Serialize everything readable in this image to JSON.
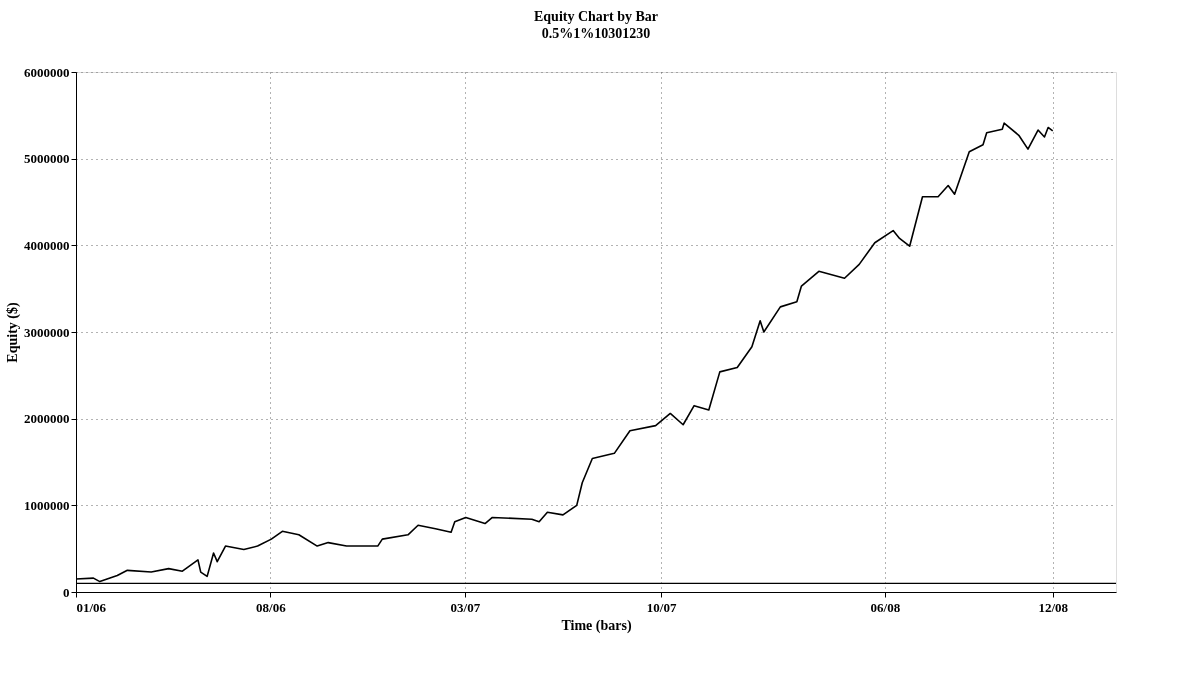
{
  "chart_data": {
    "type": "line",
    "title": "Equity Chart by Bar",
    "subtitle": "0.5%1%10301230",
    "xlabel": "Time (bars)",
    "ylabel": "Equity ($)",
    "xlim": [
      "2006-01-01",
      "2009-02-08"
    ],
    "xticks": [
      {
        "value": "2006-01",
        "label": "01/06"
      },
      {
        "value": "2006-08",
        "label": "08/06"
      },
      {
        "value": "2007-03",
        "label": "03/07"
      },
      {
        "value": "2007-10",
        "label": "10/07"
      },
      {
        "value": "2008-06",
        "label": "06/08"
      },
      {
        "value": "2008-12",
        "label": "12/08"
      }
    ],
    "ylim": [
      0,
      6000000
    ],
    "yticks": [
      0,
      1000000,
      2000000,
      3000000,
      4000000,
      5000000,
      6000000
    ],
    "grid": true,
    "line_style": "solid",
    "marker": "none",
    "ref_lines": [
      {
        "axis": "y",
        "value": 100000,
        "color": "#000000"
      }
    ],
    "x": [
      "2006-01-01",
      "2006-01-20",
      "2006-01-27",
      "2006-02-15",
      "2006-02-26",
      "2006-03-24",
      "2006-04-12",
      "2006-04-27",
      "2006-05-14",
      "2006-05-17",
      "2006-05-24",
      "2006-05-31",
      "2006-06-04",
      "2006-06-13",
      "2006-07-03",
      "2006-07-18",
      "2006-08-02",
      "2006-08-14",
      "2006-09-01",
      "2006-09-21",
      "2006-10-03",
      "2006-10-23",
      "2006-11-26",
      "2006-12-01",
      "2006-12-29",
      "2007-01-09",
      "2007-01-28",
      "2007-02-14",
      "2007-02-18",
      "2007-03-02",
      "2007-03-23",
      "2007-03-31",
      "2007-05-13",
      "2007-05-21",
      "2007-05-30",
      "2007-06-16",
      "2007-07-01",
      "2007-07-07",
      "2007-07-18",
      "2007-08-11",
      "2007-08-28",
      "2007-09-25",
      "2007-10-11",
      "2007-10-25",
      "2007-11-06",
      "2007-11-22",
      "2007-12-04",
      "2007-12-23",
      "2008-01-08",
      "2008-01-17",
      "2008-01-21",
      "2008-02-08",
      "2008-02-26",
      "2008-03-02",
      "2008-03-21",
      "2008-04-18",
      "2008-05-04",
      "2008-05-21",
      "2008-06-10",
      "2008-06-17",
      "2008-06-28",
      "2008-07-12",
      "2008-07-29",
      "2008-08-09",
      "2008-08-16",
      "2008-09-01",
      "2008-09-16",
      "2008-09-20",
      "2008-10-07",
      "2008-10-09",
      "2008-10-25",
      "2008-11-04",
      "2008-11-15",
      "2008-11-22",
      "2008-11-26",
      "2008-12-01"
    ],
    "series": [
      {
        "color": "#000000",
        "values": [
          150000,
          160000,
          120000,
          190000,
          250000,
          230000,
          270000,
          240000,
          370000,
          230000,
          180000,
          450000,
          350000,
          530000,
          490000,
          530000,
          610000,
          700000,
          660000,
          530000,
          570000,
          530000,
          530000,
          610000,
          660000,
          770000,
          730000,
          690000,
          810000,
          860000,
          790000,
          860000,
          840000,
          810000,
          920000,
          890000,
          1000000,
          1260000,
          1540000,
          1600000,
          1860000,
          1920000,
          2060000,
          1930000,
          2150000,
          2100000,
          2540000,
          2590000,
          2830000,
          3130000,
          3000000,
          3290000,
          3350000,
          3530000,
          3700000,
          3620000,
          3780000,
          4030000,
          4170000,
          4080000,
          3990000,
          4560000,
          4560000,
          4690000,
          4590000,
          5080000,
          5160000,
          5300000,
          5340000,
          5410000,
          5270000,
          5110000,
          5330000,
          5250000,
          5360000,
          5320000
        ]
      }
    ]
  }
}
